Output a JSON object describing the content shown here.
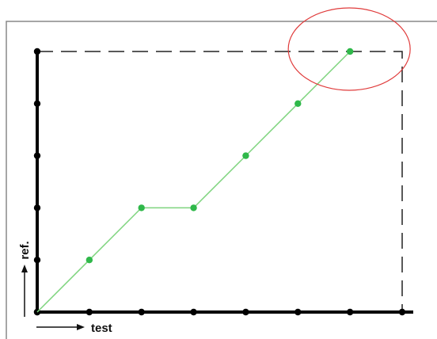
{
  "chart_data": {
    "type": "line",
    "title": "",
    "xlabel": "test",
    "ylabel": "ref.",
    "xlim": [
      0,
      7
    ],
    "ylim": [
      0,
      5
    ],
    "x_ticks": [
      0,
      1,
      2,
      3,
      4,
      5,
      6,
      7
    ],
    "y_ticks": [
      0,
      1,
      2,
      3,
      4,
      5
    ],
    "grid": false,
    "legend": "none",
    "series": [
      {
        "x": [
          0,
          1,
          2,
          3,
          4,
          5,
          6
        ],
        "y": [
          0,
          1,
          2,
          2,
          3,
          4,
          5
        ]
      }
    ],
    "annotations": [
      {
        "type": "dashed-bounding-box",
        "x": [
          0,
          7
        ],
        "y": [
          0,
          5
        ]
      },
      {
        "type": "highlight-ellipse",
        "target": "final-point",
        "x": 6,
        "y": 5
      }
    ],
    "colors": {
      "line": "#7ed47e",
      "marker": "#2fb84a",
      "axis": "#000000",
      "highlight": "#e03c3c",
      "frame": "#888888",
      "dashes": "#222222"
    }
  }
}
